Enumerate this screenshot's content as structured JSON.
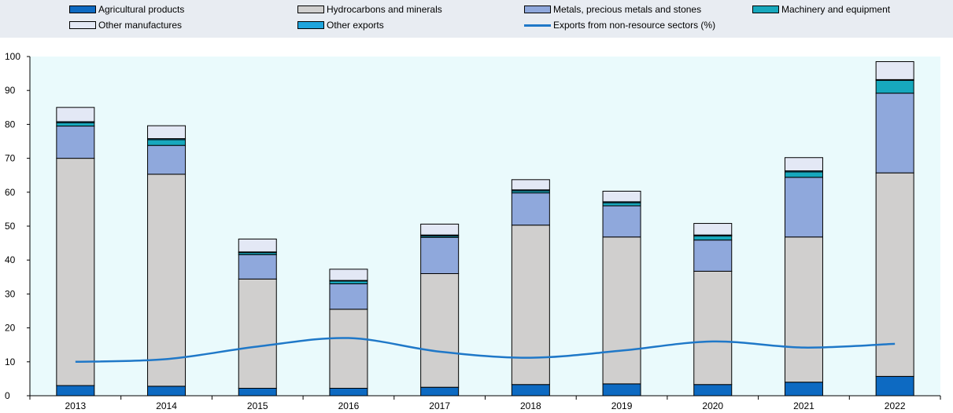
{
  "legend": {
    "items": [
      {
        "key": "agri",
        "label": "Agricultural products",
        "type": "box"
      },
      {
        "key": "hydro",
        "label": "Hydrocarbons and minerals",
        "type": "box"
      },
      {
        "key": "metals",
        "label": "Metals, precious metals and stones",
        "type": "box"
      },
      {
        "key": "mach",
        "label": "Machinery and equipment",
        "type": "box"
      },
      {
        "key": "othman",
        "label": "Other manufactures",
        "type": "box"
      },
      {
        "key": "othexp",
        "label": "Other exports",
        "type": "box"
      },
      {
        "key": "nonres",
        "label": "Exports from non-resource sectors (%)",
        "type": "line"
      }
    ]
  },
  "colors": {
    "agri": "#0d6ac2",
    "hydro": "#d0cfce",
    "metals": "#8fa8dc",
    "mach": "#17a8bd",
    "othman": "#e3e8f5",
    "othexp": "#1fa5dd",
    "nonres": "#1f78c8",
    "plot_bg": "#eafafc"
  },
  "chart_data": {
    "type": "bar",
    "stacked": true,
    "categories": [
      "2013",
      "2014",
      "2015",
      "2016",
      "2017",
      "2018",
      "2019",
      "2020",
      "2021",
      "2022"
    ],
    "series": [
      {
        "key": "agri",
        "name": "Agricultural products",
        "values": [
          3,
          2.8,
          2.2,
          2.2,
          2.5,
          3.3,
          3.5,
          3.3,
          4,
          5.7
        ]
      },
      {
        "key": "hydro",
        "name": "Hydrocarbons and minerals",
        "values": [
          67,
          62.5,
          32.2,
          23.3,
          33.5,
          47,
          43.3,
          33.4,
          42.8,
          60
        ]
      },
      {
        "key": "metals",
        "name": "Metals, precious metals and stones",
        "values": [
          9.5,
          8.5,
          7.2,
          7.5,
          10.7,
          9.5,
          9.2,
          9.2,
          17.6,
          23.5
        ]
      },
      {
        "key": "mach",
        "name": "Machinery and equipment",
        "values": [
          1,
          1.7,
          0.6,
          0.8,
          0.4,
          0.6,
          0.9,
          1.2,
          1.6,
          3.8
        ]
      },
      {
        "key": "othexp",
        "name": "Other exports",
        "values": [
          0.3,
          0.3,
          0.2,
          0.2,
          0.3,
          0.3,
          0.3,
          0.3,
          0.3,
          0.2
        ]
      },
      {
        "key": "othman",
        "name": "Other manufactures",
        "values": [
          4.2,
          3.8,
          3.8,
          3.3,
          3.2,
          3,
          3.1,
          3.4,
          3.9,
          5.3
        ]
      }
    ],
    "line": {
      "key": "nonres",
      "name": "Exports from non-resource sectors (%)",
      "values": [
        10,
        10.8,
        14.5,
        17,
        13,
        11.2,
        13.3,
        16,
        14.2,
        15.3
      ]
    },
    "ylim": [
      0,
      100
    ],
    "yticks": [
      0,
      10,
      20,
      30,
      40,
      50,
      60,
      70,
      80,
      90,
      100
    ],
    "grid": false,
    "legend_position": "top"
  }
}
